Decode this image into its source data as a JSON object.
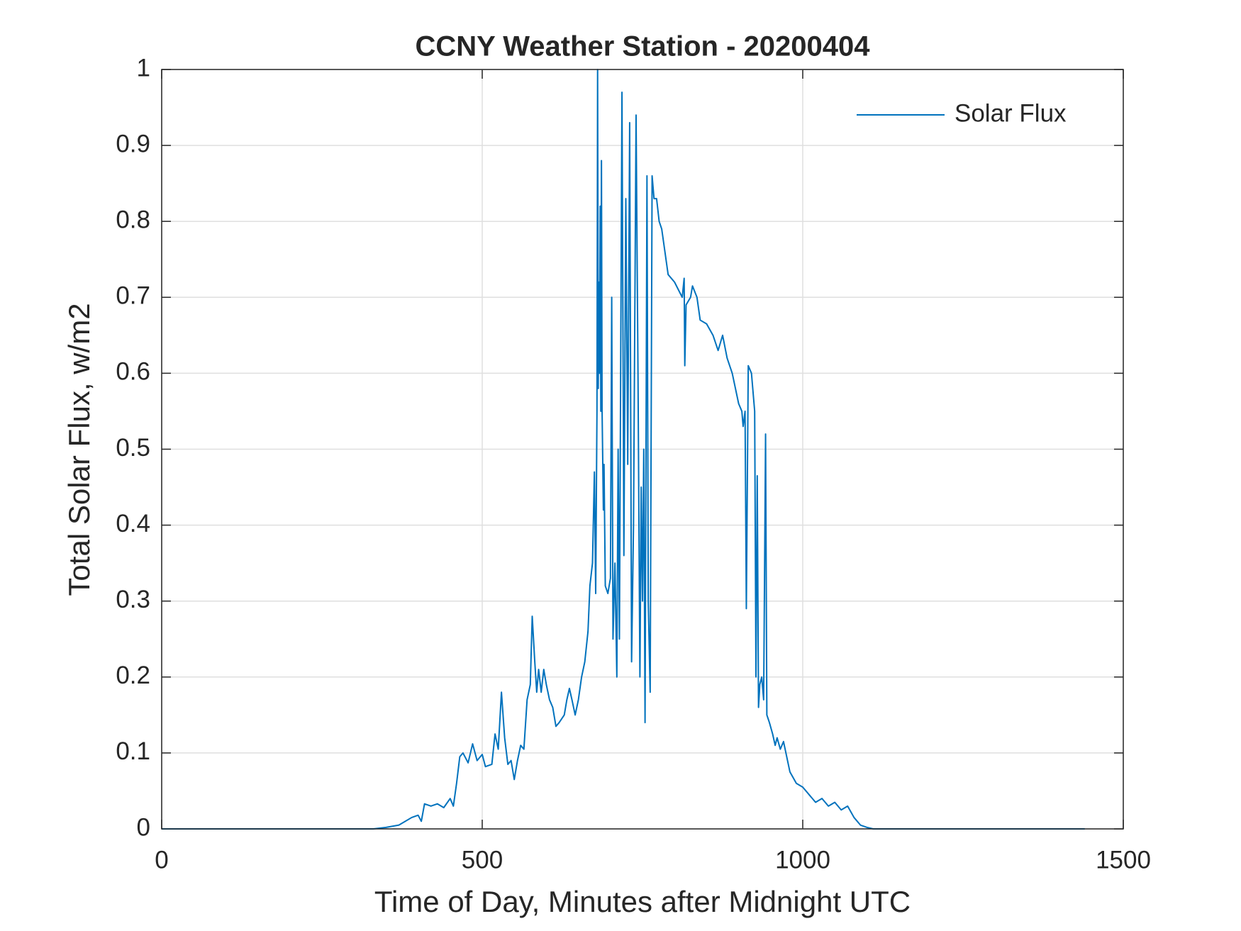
{
  "chart_data": {
    "type": "line",
    "title": "CCNY Weather Station - 20200404",
    "xlabel": "Time of Day, Minutes after Midnight UTC",
    "ylabel": "Total Solar Flux, w/m2",
    "xlim": [
      0,
      1500
    ],
    "xticks": [
      0,
      500,
      1000,
      1500
    ],
    "ylim": [
      0,
      1
    ],
    "yticks": [
      0,
      0.1,
      0.2,
      0.3,
      0.4,
      0.5,
      0.6,
      0.7,
      0.8,
      0.9,
      1
    ],
    "grid": true,
    "legend": "northeast",
    "series": [
      {
        "name": "Solar Flux",
        "color": "#0072bd",
        "x": [
          0,
          330,
          350,
          370,
          390,
          400,
          405,
          410,
          420,
          430,
          440,
          450,
          455,
          460,
          465,
          470,
          478,
          485,
          492,
          500,
          505,
          515,
          520,
          525,
          530,
          535,
          540,
          545,
          550,
          555,
          560,
          565,
          570,
          575,
          578,
          582,
          585,
          588,
          592,
          596,
          600,
          605,
          610,
          615,
          620,
          628,
          632,
          636,
          640,
          645,
          650,
          655,
          660,
          665,
          668,
          672,
          675,
          677,
          679,
          680,
          681,
          682,
          683,
          684,
          685,
          686,
          687,
          689,
          690,
          692,
          696,
          700,
          702,
          704,
          707,
          710,
          712,
          714,
          718,
          721,
          724,
          727,
          730,
          733,
          736,
          740,
          743,
          746,
          748,
          750,
          752,
          754,
          757,
          759,
          762,
          765,
          768,
          772,
          776,
          780,
          790,
          800,
          812,
          815,
          816,
          818,
          825,
          828,
          835,
          840,
          850,
          860,
          868,
          875,
          882,
          890,
          900,
          905,
          907,
          910,
          912,
          915,
          920,
          925,
          927,
          929,
          931,
          933,
          936,
          939,
          942,
          944,
          948,
          953,
          957,
          960,
          965,
          970,
          980,
          990,
          1000,
          1010,
          1020,
          1030,
          1040,
          1050,
          1060,
          1070,
          1080,
          1090,
          1100,
          1110,
          1440
        ],
        "values": [
          0,
          0,
          0.002,
          0.005,
          0.015,
          0.018,
          0.01,
          0.033,
          0.03,
          0.033,
          0.028,
          0.04,
          0.03,
          0.06,
          0.095,
          0.1,
          0.087,
          0.112,
          0.09,
          0.098,
          0.082,
          0.085,
          0.125,
          0.105,
          0.18,
          0.12,
          0.085,
          0.09,
          0.065,
          0.09,
          0.11,
          0.105,
          0.17,
          0.19,
          0.28,
          0.22,
          0.18,
          0.21,
          0.18,
          0.21,
          0.19,
          0.17,
          0.16,
          0.135,
          0.14,
          0.15,
          0.17,
          0.185,
          0.17,
          0.15,
          0.17,
          0.2,
          0.22,
          0.26,
          0.32,
          0.35,
          0.47,
          0.31,
          0.55,
          1.0,
          0.58,
          0.72,
          0.6,
          0.82,
          0.55,
          0.88,
          0.55,
          0.42,
          0.48,
          0.32,
          0.31,
          0.33,
          0.7,
          0.25,
          0.35,
          0.2,
          0.5,
          0.25,
          0.97,
          0.36,
          0.83,
          0.48,
          0.93,
          0.22,
          0.4,
          0.94,
          0.6,
          0.2,
          0.45,
          0.3,
          0.5,
          0.14,
          0.86,
          0.3,
          0.18,
          0.86,
          0.83,
          0.83,
          0.8,
          0.79,
          0.73,
          0.72,
          0.7,
          0.725,
          0.61,
          0.69,
          0.7,
          0.715,
          0.7,
          0.67,
          0.665,
          0.65,
          0.63,
          0.65,
          0.62,
          0.6,
          0.56,
          0.55,
          0.53,
          0.55,
          0.29,
          0.61,
          0.6,
          0.55,
          0.2,
          0.465,
          0.16,
          0.19,
          0.2,
          0.17,
          0.52,
          0.15,
          0.14,
          0.125,
          0.11,
          0.12,
          0.105,
          0.115,
          0.075,
          0.06,
          0.055,
          0.045,
          0.035,
          0.04,
          0.03,
          0.035,
          0.025,
          0.03,
          0.015,
          0.005,
          0.002,
          0,
          0
        ]
      }
    ]
  }
}
